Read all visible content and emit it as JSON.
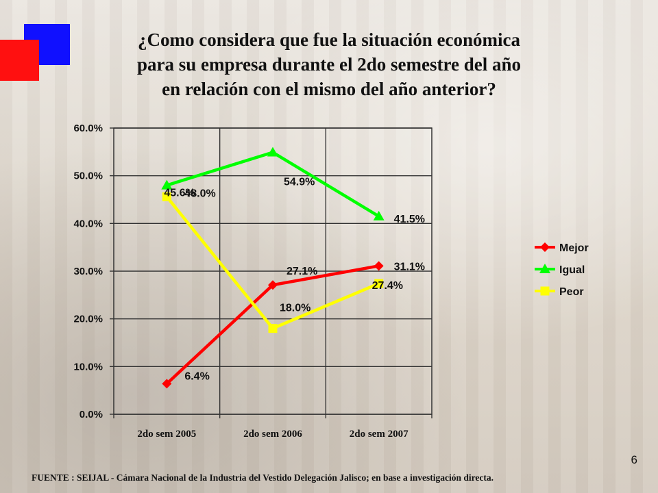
{
  "slide": {
    "title_lines": [
      "¿Como considera que fue la situación económica",
      "para su empresa durante el 2do semestre del año",
      "en relación con el mismo del año anterior?"
    ],
    "page_number": "6",
    "source": "FUENTE :  SEIJAL - Cámara Nacional de la Industria del Vestido Delegación Jalisco;  en base a investigación directa."
  },
  "chart_data": {
    "type": "line",
    "title": "",
    "xlabel": "",
    "ylabel": "",
    "categories": [
      "2do sem 2005",
      "2do sem 2006",
      "2do sem 2007"
    ],
    "ylim": [
      0,
      60
    ],
    "yticks": [
      "0.0%",
      "10.0%",
      "20.0%",
      "30.0%",
      "40.0%",
      "50.0%",
      "60.0%"
    ],
    "grid": true,
    "legend_position": "right",
    "series": [
      {
        "name": "Mejor",
        "color": "#ff0000",
        "marker": "diamond",
        "values": [
          6.4,
          27.1,
          31.1
        ],
        "labels": [
          "6.4%",
          "27.1%",
          "31.1%"
        ]
      },
      {
        "name": "Igual",
        "color": "#00ff00",
        "marker": "triangle",
        "values": [
          48.0,
          54.9,
          41.5
        ],
        "labels": [
          "48.0%",
          "54.9%",
          "41.5%"
        ]
      },
      {
        "name": "Peor",
        "color": "#ffff00",
        "marker": "square",
        "values": [
          45.6,
          18.0,
          27.4
        ],
        "labels": [
          "45.6%",
          "18.0%",
          "27.4%"
        ]
      }
    ]
  }
}
